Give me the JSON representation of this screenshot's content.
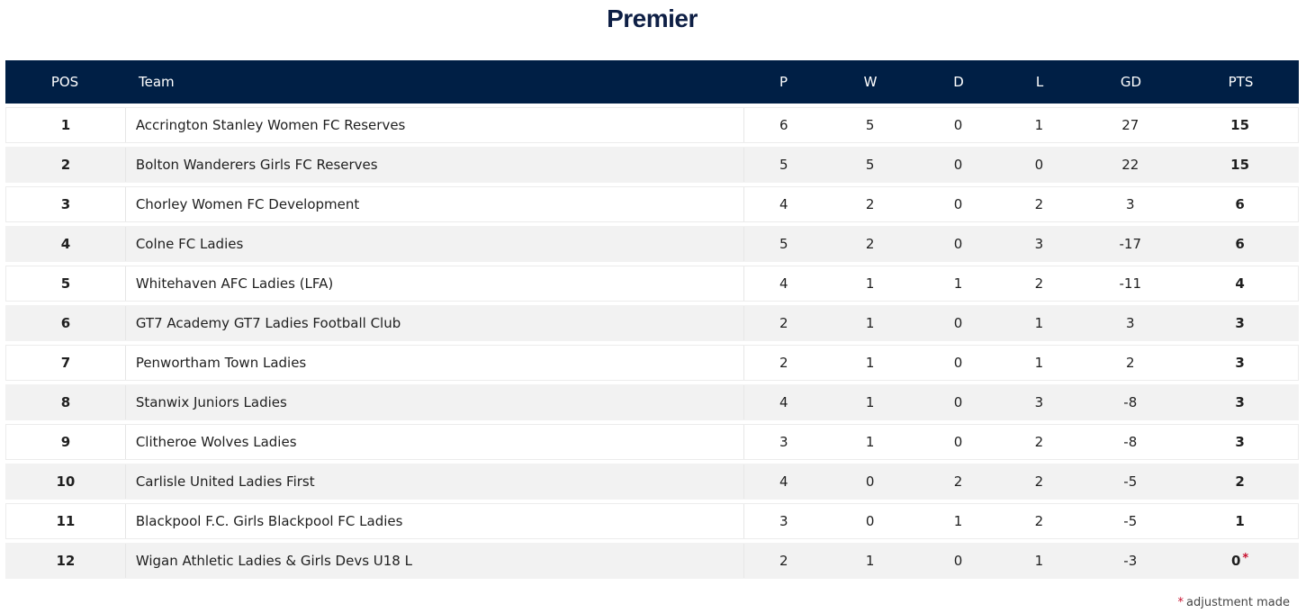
{
  "page_title": "Premier",
  "columns": {
    "pos": "POS",
    "team": "Team",
    "p": "P",
    "w": "W",
    "d": "D",
    "l": "L",
    "gd": "GD",
    "pts": "PTS"
  },
  "rows": [
    {
      "pos": "1",
      "team": "Accrington Stanley Women FC Reserves",
      "p": "6",
      "w": "5",
      "d": "0",
      "l": "1",
      "gd": "27",
      "pts": "15",
      "adjusted": false
    },
    {
      "pos": "2",
      "team": "Bolton Wanderers Girls FC Reserves",
      "p": "5",
      "w": "5",
      "d": "0",
      "l": "0",
      "gd": "22",
      "pts": "15",
      "adjusted": false
    },
    {
      "pos": "3",
      "team": "Chorley Women FC Development",
      "p": "4",
      "w": "2",
      "d": "0",
      "l": "2",
      "gd": "3",
      "pts": "6",
      "adjusted": false
    },
    {
      "pos": "4",
      "team": "Colne FC Ladies",
      "p": "5",
      "w": "2",
      "d": "0",
      "l": "3",
      "gd": "-17",
      "pts": "6",
      "adjusted": false
    },
    {
      "pos": "5",
      "team": "Whitehaven AFC Ladies (LFA)",
      "p": "4",
      "w": "1",
      "d": "1",
      "l": "2",
      "gd": "-11",
      "pts": "4",
      "adjusted": false
    },
    {
      "pos": "6",
      "team": "GT7 Academy GT7 Ladies Football Club",
      "p": "2",
      "w": "1",
      "d": "0",
      "l": "1",
      "gd": "3",
      "pts": "3",
      "adjusted": false
    },
    {
      "pos": "7",
      "team": "Penwortham Town Ladies",
      "p": "2",
      "w": "1",
      "d": "0",
      "l": "1",
      "gd": "2",
      "pts": "3",
      "adjusted": false
    },
    {
      "pos": "8",
      "team": "Stanwix Juniors Ladies",
      "p": "4",
      "w": "1",
      "d": "0",
      "l": "3",
      "gd": "-8",
      "pts": "3",
      "adjusted": false
    },
    {
      "pos": "9",
      "team": "Clitheroe Wolves Ladies",
      "p": "3",
      "w": "1",
      "d": "0",
      "l": "2",
      "gd": "-8",
      "pts": "3",
      "adjusted": false
    },
    {
      "pos": "10",
      "team": "Carlisle United Ladies First",
      "p": "4",
      "w": "0",
      "d": "2",
      "l": "2",
      "gd": "-5",
      "pts": "2",
      "adjusted": false
    },
    {
      "pos": "11",
      "team": "Blackpool F.C. Girls Blackpool FC Ladies",
      "p": "3",
      "w": "0",
      "d": "1",
      "l": "2",
      "gd": "-5",
      "pts": "1",
      "adjusted": false
    },
    {
      "pos": "12",
      "team": "Wigan Athletic Ladies & Girls Devs U18 L",
      "p": "2",
      "w": "1",
      "d": "0",
      "l": "1",
      "gd": "-3",
      "pts": "0",
      "adjusted": true
    }
  ],
  "adjustment_marker": "*",
  "footnote": "adjustment made",
  "colors": {
    "header_bg": "#001f45",
    "title": "#0e1f45",
    "row_alt": "#f2f2f2",
    "marker": "#c8102e"
  }
}
